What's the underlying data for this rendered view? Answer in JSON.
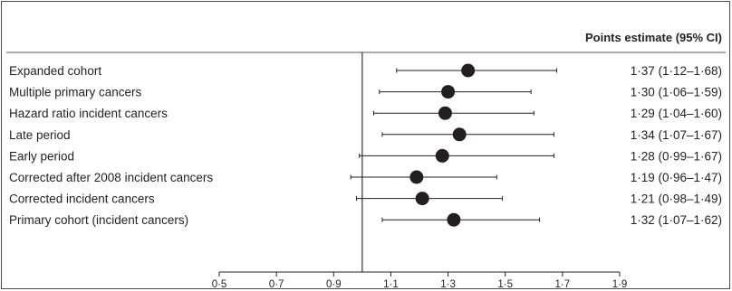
{
  "chart_data": {
    "type": "forest",
    "header": "Points estimate (95% CI)",
    "xlim": [
      0.5,
      1.9
    ],
    "reference_line": 1.0,
    "x_ticks": [
      0.5,
      0.7,
      0.9,
      1.1,
      1.3,
      1.5,
      1.7,
      1.9
    ],
    "x_tick_labels": [
      "0·5",
      "0·7",
      "0·9",
      "1·1",
      "1·3",
      "1·5",
      "1·7",
      "1·9"
    ],
    "rows": [
      {
        "label": "Expanded cohort",
        "estimate": 1.37,
        "lower": 1.12,
        "upper": 1.68,
        "text": "1·37 (1·12–1·68)"
      },
      {
        "label": "Multiple primary cancers",
        "estimate": 1.3,
        "lower": 1.06,
        "upper": 1.59,
        "text": "1·30 (1·06–1·59)"
      },
      {
        "label": "Hazard ratio incident cancers",
        "estimate": 1.29,
        "lower": 1.04,
        "upper": 1.6,
        "text": "1·29 (1·04–1·60)"
      },
      {
        "label": "Late period",
        "estimate": 1.34,
        "lower": 1.07,
        "upper": 1.67,
        "text": "1·34 (1·07–1·67)"
      },
      {
        "label": "Early period",
        "estimate": 1.28,
        "lower": 0.99,
        "upper": 1.67,
        "text": "1·28 (0·99–1·67)"
      },
      {
        "label": "Corrected after 2008 incident cancers",
        "estimate": 1.19,
        "lower": 0.96,
        "upper": 1.47,
        "text": "1·19 (0·96–1·47)"
      },
      {
        "label": "Corrected incident cancers",
        "estimate": 1.21,
        "lower": 0.98,
        "upper": 1.49,
        "text": "1·21 (0·98–1·49)"
      },
      {
        "label": "Primary cohort (incident cancers)",
        "estimate": 1.32,
        "lower": 1.07,
        "upper": 1.62,
        "text": "1·32 (1·07–1·62)"
      }
    ]
  }
}
